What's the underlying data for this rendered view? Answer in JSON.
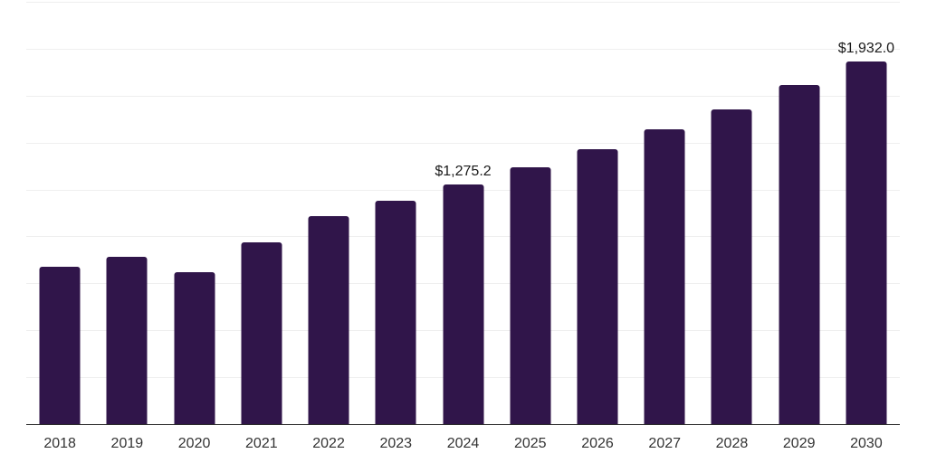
{
  "chart_data": {
    "type": "bar",
    "title": "",
    "xlabel": "",
    "ylabel": "",
    "categories": [
      "2018",
      "2019",
      "2020",
      "2021",
      "2022",
      "2023",
      "2024",
      "2025",
      "2026",
      "2027",
      "2028",
      "2029",
      "2030"
    ],
    "values": [
      838,
      890,
      809,
      970,
      1107,
      1191,
      1275.2,
      1367,
      1465,
      1569,
      1677,
      1805,
      1932.0
    ],
    "data_labels": {
      "2024": "$1,275.2",
      "2030": "$1,932.0"
    },
    "ylim": [
      0,
      2250
    ],
    "gridline_step": 250,
    "grid": "horizontal-light",
    "legend": "none",
    "y_axis_labels_visible": false,
    "bar_color": "#30154a",
    "gridline_color": "#efefef",
    "axis_line_color": "#2b2b2b",
    "value_label_color": "#1a1a1a",
    "tick_label_color": "#333333"
  }
}
